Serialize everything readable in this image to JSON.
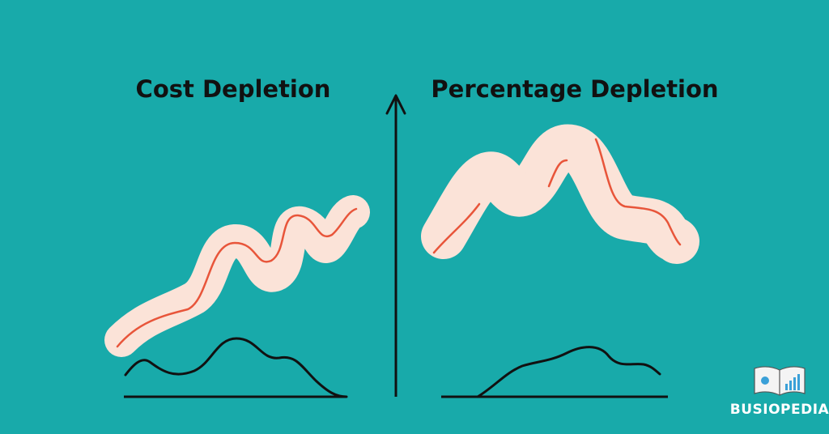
{
  "left": {
    "title": "Cost Depletion"
  },
  "right": {
    "title": "Percentage Depletion"
  },
  "logo": {
    "text": "BUSIOPEDIA"
  }
}
